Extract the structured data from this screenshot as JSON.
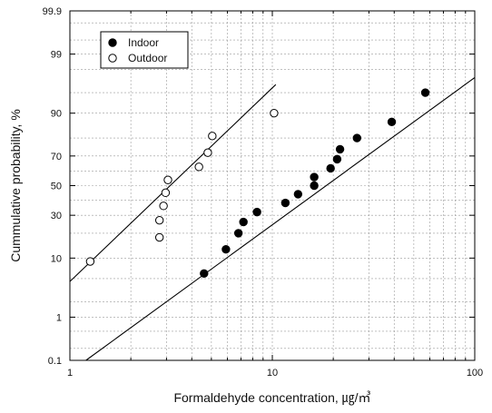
{
  "chart_data": {
    "type": "scatter",
    "title": "",
    "xlabel": "Formaldehyde concentration, ㎍/㎥",
    "ylabel": "Cummulative probability, %",
    "x_scale": "log",
    "y_scale": "probability",
    "xlim": [
      1,
      100
    ],
    "ylim": [
      0.1,
      99.9
    ],
    "x_ticks": [
      "1",
      "10",
      "100"
    ],
    "y_ticks": [
      "0.1",
      "1",
      "10",
      "30",
      "50",
      "70",
      "90",
      "99",
      "99.9"
    ],
    "grid": true,
    "legend_position": "top-left",
    "series": [
      {
        "name": "Indoor",
        "marker": "filled-circle",
        "color": "#000000",
        "x": [
          4.6,
          5.9,
          6.8,
          7.2,
          8.4,
          11.6,
          13.4,
          16.1,
          16.1,
          19.4,
          20.9,
          21.6,
          26.2,
          38.9,
          57.0
        ],
        "y": [
          6,
          13,
          20,
          26,
          32,
          38,
          44,
          50,
          56,
          62,
          68,
          74,
          80,
          87,
          95
        ],
        "fit_line": {
          "x": [
            1.2,
            100
          ],
          "y": [
            0.1,
            97.2
          ]
        }
      },
      {
        "name": "Outdoor",
        "marker": "open-circle",
        "color": "#000000",
        "x": [
          1.26,
          2.77,
          2.77,
          2.9,
          2.97,
          3.05,
          4.34,
          4.8,
          5.05,
          10.2
        ],
        "y": [
          9,
          18,
          27,
          36,
          45,
          54,
          63,
          72,
          81,
          90
        ],
        "fit_line": {
          "x": [
            1,
            10.4
          ],
          "y": [
            4.5,
            96.3
          ]
        }
      }
    ]
  }
}
